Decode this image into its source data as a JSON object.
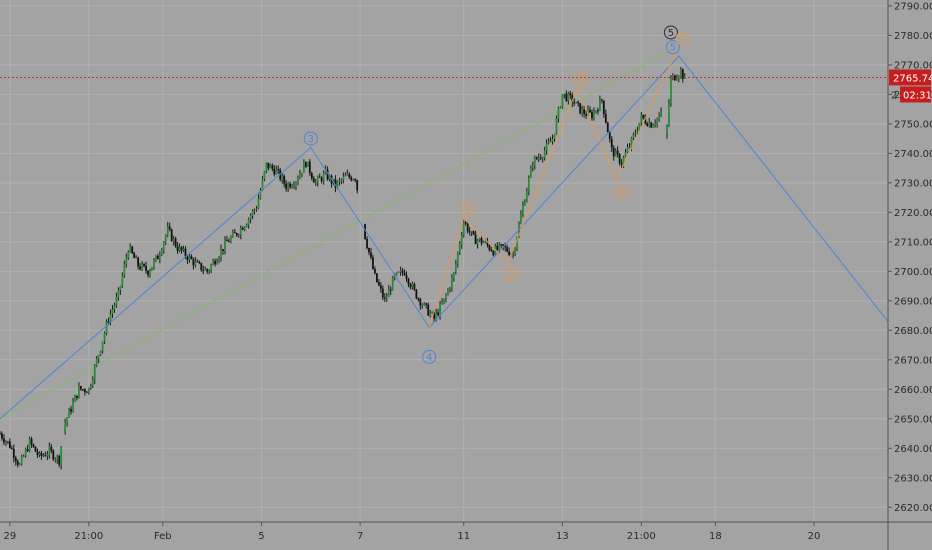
{
  "colors": {
    "background": "#a3a3a3",
    "axis_panel": "#a3a3a3",
    "grid": "#b1b1b1",
    "candle_up": "#2c8a37",
    "candle_down": "#121212",
    "wick": "#1a1a1a",
    "blue_wave": "#4f84d8",
    "orange_wave": "#e39a4d",
    "green_channel": "#86b86a",
    "price_line": "#c92f2f",
    "price_badge": "#c41f1f",
    "dark_badge": "#2f2f2f",
    "axis_text": "#2b2b2b",
    "axis_line": "#555555"
  },
  "price_axis": {
    "ticks": [
      "2790.00",
      "2780.00",
      "2770.00",
      "2760.00",
      "2750.00",
      "2740.00",
      "2730.00",
      "2720.00",
      "2710.00",
      "2700.00",
      "2690.00",
      "2680.00",
      "2670.00",
      "2660.00",
      "2650.00",
      "2640.00",
      "2630.00",
      "2620.00"
    ],
    "current_price_label": "2765.74",
    "countdown_label": "02:31",
    "partial_label": "2"
  },
  "time_axis": {
    "ticks": [
      "29",
      "21:00",
      "Feb",
      "5",
      "7",
      "11",
      "13",
      "21:00",
      "18",
      "20"
    ]
  },
  "wave_labels": {
    "blue_3": "3",
    "blue_4": "4",
    "blue_5": "5",
    "orange_1": "1",
    "orange_2": "2",
    "orange_3": "3",
    "orange_4": "4",
    "orange_5": "5",
    "dark_5": "5"
  },
  "chart_data": {
    "type": "candlestick",
    "ylim": [
      2615,
      2792
    ],
    "x_range": [
      0,
      90
    ],
    "x_ticks": [
      {
        "label": "29",
        "x": 1
      },
      {
        "label": "21:00",
        "x": 9
      },
      {
        "label": "Feb",
        "x": 16.5
      },
      {
        "label": "5",
        "x": 26.5
      },
      {
        "label": "7",
        "x": 36.5
      },
      {
        "label": "11",
        "x": 47
      },
      {
        "label": "13",
        "x": 57
      },
      {
        "label": "21:00",
        "x": 65
      },
      {
        "label": "18",
        "x": 72.5
      },
      {
        "label": "20",
        "x": 82.5
      }
    ],
    "close_path": [
      [
        0,
        2645
      ],
      [
        1,
        2641
      ],
      [
        2,
        2634
      ],
      [
        3,
        2642
      ],
      [
        4,
        2637
      ],
      [
        5,
        2639
      ],
      [
        6,
        2636
      ],
      [
        6.5,
        2648
      ],
      [
        7,
        2652
      ],
      [
        8,
        2660
      ],
      [
        9,
        2660
      ],
      [
        10,
        2672
      ],
      [
        11,
        2684
      ],
      [
        12,
        2692
      ],
      [
        13,
        2708
      ],
      [
        14,
        2702
      ],
      [
        15,
        2700
      ],
      [
        16,
        2705
      ],
      [
        17,
        2714
      ],
      [
        18,
        2708
      ],
      [
        19,
        2705
      ],
      [
        20,
        2702
      ],
      [
        21,
        2700
      ],
      [
        22,
        2705
      ],
      [
        23,
        2710
      ],
      [
        24,
        2713
      ],
      [
        25,
        2717
      ],
      [
        26,
        2722
      ],
      [
        27,
        2736
      ],
      [
        28,
        2734
      ],
      [
        29,
        2729
      ],
      [
        30,
        2731
      ],
      [
        31,
        2737
      ],
      [
        32,
        2730
      ],
      [
        33,
        2733
      ],
      [
        34,
        2729
      ],
      [
        35,
        2732
      ],
      [
        36,
        2732
      ],
      [
        37,
        2712
      ],
      [
        38,
        2698
      ],
      [
        39,
        2690
      ],
      [
        40,
        2698
      ],
      [
        41,
        2700
      ],
      [
        42,
        2693
      ],
      [
        43,
        2688
      ],
      [
        44,
        2684
      ],
      [
        45,
        2690
      ],
      [
        46,
        2699
      ],
      [
        47,
        2717
      ],
      [
        48,
        2711
      ],
      [
        49,
        2710
      ],
      [
        50,
        2707
      ],
      [
        51,
        2708
      ],
      [
        52,
        2706
      ],
      [
        53,
        2722
      ],
      [
        54,
        2737
      ],
      [
        55,
        2740
      ],
      [
        56,
        2745
      ],
      [
        57,
        2760
      ],
      [
        58,
        2758
      ],
      [
        59,
        2754
      ],
      [
        60,
        2753
      ],
      [
        61,
        2758
      ],
      [
        62,
        2741
      ],
      [
        63,
        2737
      ],
      [
        64,
        2744
      ],
      [
        65,
        2752
      ],
      [
        66,
        2750
      ],
      [
        67,
        2753
      ],
      [
        67.5,
        2745
      ],
      [
        68,
        2765
      ],
      [
        69,
        2768
      ],
      [
        69.5,
        2764
      ]
    ],
    "current_price": 2765.74,
    "wave_lines": {
      "blue": [
        [
          0,
          2650
        ],
        [
          31.5,
          2742
        ],
        [
          43.5,
          2681
        ],
        [
          68.8,
          2773
        ],
        [
          90,
          2683
        ]
      ],
      "orange": [
        [
          43.5,
          2681
        ],
        [
          47,
          2718
        ],
        [
          51.5,
          2703
        ],
        [
          58.5,
          2762
        ],
        [
          62.5,
          2731
        ],
        [
          68.5,
          2774
        ]
      ],
      "green": [
        [
          0,
          2650
        ],
        [
          68,
          2775
        ]
      ]
    },
    "wave_points": [
      {
        "name": "blue_3",
        "x": 31.5,
        "y": 2745,
        "color": "blue"
      },
      {
        "name": "blue_4",
        "x": 43.5,
        "y": 2671,
        "color": "blue"
      },
      {
        "name": "blue_5",
        "x": 68.2,
        "y": 2776,
        "color": "blue"
      },
      {
        "name": "dark_5",
        "x": 68.0,
        "y": 2781,
        "color": "dark"
      },
      {
        "name": "orange_1",
        "x": 47.4,
        "y": 2721,
        "color": "orange"
      },
      {
        "name": "orange_2",
        "x": 51.8,
        "y": 2699,
        "color": "orange"
      },
      {
        "name": "orange_3",
        "x": 58.9,
        "y": 2765,
        "color": "orange"
      },
      {
        "name": "orange_4",
        "x": 63.0,
        "y": 2727,
        "color": "orange"
      },
      {
        "name": "orange_5",
        "x": 69.2,
        "y": 2779,
        "color": "orange"
      }
    ]
  }
}
